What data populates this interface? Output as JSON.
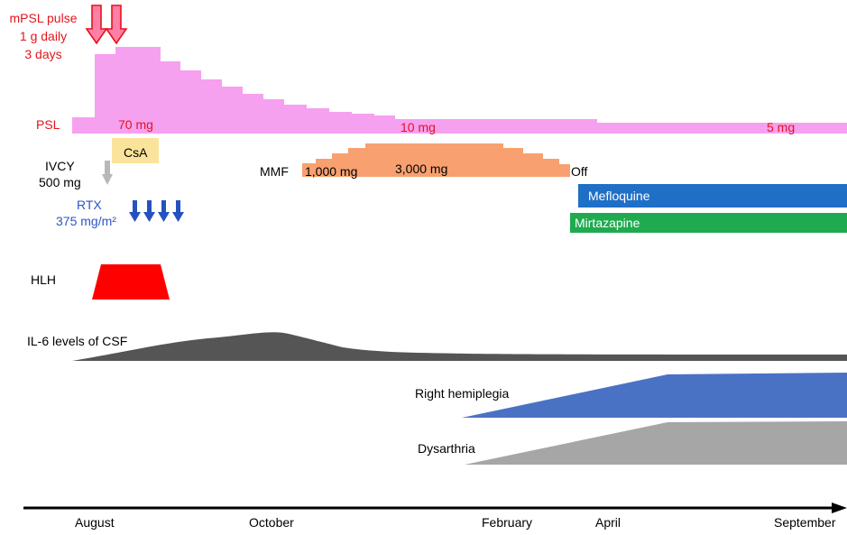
{
  "mpsl": {
    "line1": "mPSL pulse",
    "line2": "1 g daily",
    "line3": "3 days"
  },
  "psl": {
    "label": "PSL",
    "dose_start": "70 mg",
    "dose_mid": "10 mg",
    "dose_end": "5 mg"
  },
  "csa": {
    "label": "CsA"
  },
  "ivcy": {
    "line1": "IVCY",
    "line2": "500 mg"
  },
  "rtx": {
    "line1": "RTX",
    "line2": "375 mg/m²"
  },
  "mmf": {
    "label": "MMF",
    "dose_low": "1,000 mg",
    "dose_high": "3,000 mg",
    "end": "Off"
  },
  "mefloquine": {
    "label": "Mefloquine"
  },
  "mirtazapine": {
    "label": "Mirtazapine"
  },
  "hlh": {
    "label": "HLH"
  },
  "il6": {
    "label": "IL-6 levels of CSF"
  },
  "hemiplegia": {
    "label": "Right hemiplegia"
  },
  "dysarthria": {
    "label": "Dysarthria"
  },
  "timeline": {
    "august": "August",
    "october": "October",
    "february": "February",
    "april": "April",
    "september": "September"
  },
  "colors": {
    "psl": "#f6a0f0",
    "mpsl_arrow": "#ff7fa7",
    "csa": "#fae39a",
    "mmf": "#f8a070",
    "mefloquine": "#1f6fc6",
    "mirtazapine": "#1faa50",
    "hlh": "#ff0000",
    "il6": "#555555",
    "hemiplegia": "#4a72c4",
    "dysarthria": "#a6a6a6",
    "rtx_arrow": "#2352c0",
    "ivcy_arrow": "#b8b8b8"
  }
}
